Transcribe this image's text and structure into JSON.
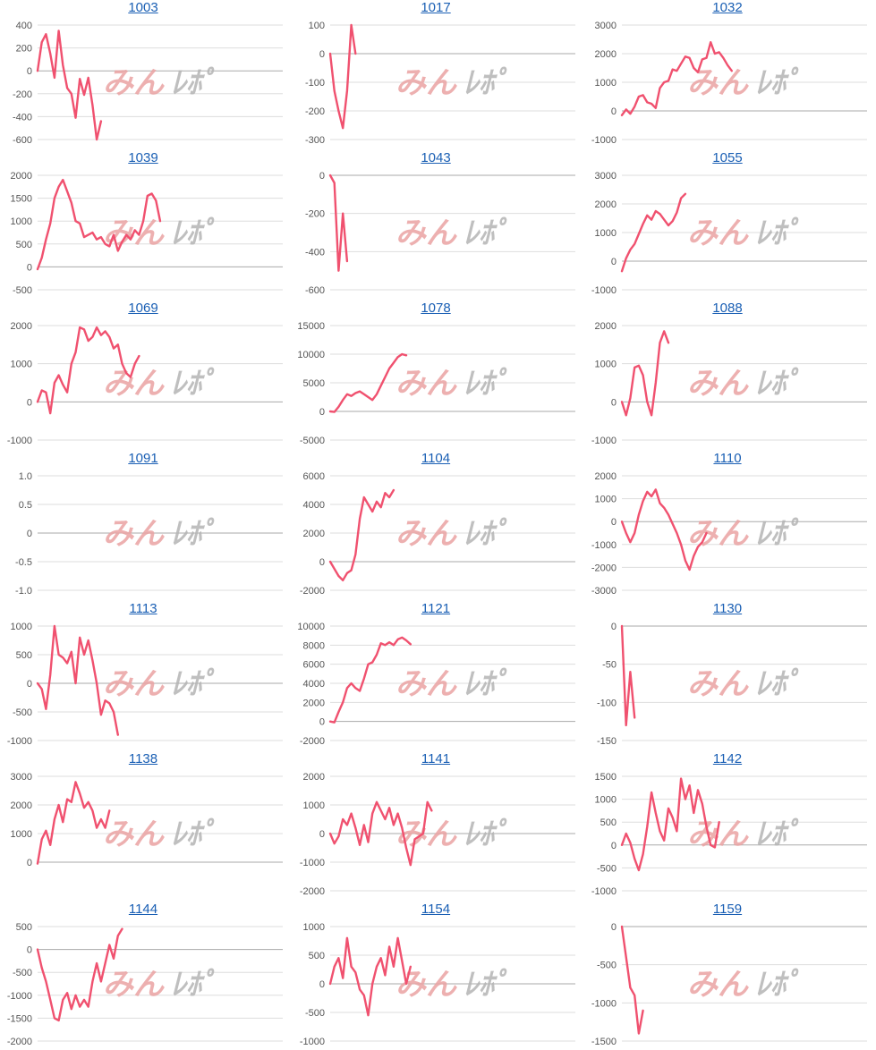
{
  "colors": {
    "line": "#f0516f",
    "grid": "#dddddd",
    "zero": "#aaaaaa",
    "tick": "#555555",
    "link": "#1a5fb4",
    "wm_left": "#eaa3a3",
    "wm_right": "#b5b5b5"
  },
  "watermark": {
    "left": "みん",
    "right": "ﾚﾎﾟ"
  },
  "chart_data": [
    {
      "type": "line",
      "title": "1003",
      "yticks": [
        "400",
        "200",
        "0",
        "-200",
        "-400",
        "-600"
      ],
      "ylim": [
        -600,
        400
      ],
      "y": [
        0,
        250,
        320,
        150,
        -60,
        350,
        50,
        -150,
        -200,
        -410,
        -70,
        -210,
        -60,
        -300,
        -600,
        -440
      ]
    },
    {
      "type": "line",
      "title": "1017",
      "yticks": [
        "100",
        "0",
        "-100",
        "-200",
        "-300"
      ],
      "ylim": [
        -300,
        100
      ],
      "y": [
        0,
        -130,
        -200,
        -260,
        -130,
        100,
        0
      ]
    },
    {
      "type": "line",
      "title": "1032",
      "yticks": [
        "3000",
        "2000",
        "1000",
        "0",
        "-1000"
      ],
      "ylim": [
        -1000,
        3000
      ],
      "y": [
        -150,
        50,
        -100,
        150,
        500,
        550,
        300,
        250,
        100,
        800,
        1000,
        1050,
        1450,
        1400,
        1650,
        1900,
        1850,
        1500,
        1350,
        1800,
        1850,
        2400,
        2000,
        2050,
        1850,
        1600,
        1400
      ]
    },
    {
      "type": "line",
      "title": "1039",
      "yticks": [
        "2000",
        "1500",
        "1000",
        "500",
        "0",
        "-500"
      ],
      "ylim": [
        -500,
        2000
      ],
      "y": [
        -50,
        200,
        600,
        950,
        1500,
        1750,
        1900,
        1650,
        1400,
        1000,
        950,
        650,
        700,
        750,
        600,
        650,
        500,
        450,
        700,
        350,
        550,
        700,
        600,
        800,
        700,
        1000,
        1550,
        1600,
        1450,
        1000
      ]
    },
    {
      "type": "line",
      "title": "1043",
      "yticks": [
        "0",
        "-200",
        "-400",
        "-600"
      ],
      "ylim": [
        -600,
        0
      ],
      "y": [
        0,
        -40,
        -500,
        -200,
        -450
      ]
    },
    {
      "type": "line",
      "title": "1055",
      "yticks": [
        "3000",
        "2000",
        "1000",
        "0",
        "-1000"
      ],
      "ylim": [
        -1000,
        3000
      ],
      "y": [
        -350,
        100,
        400,
        600,
        950,
        1300,
        1600,
        1450,
        1750,
        1650,
        1450,
        1250,
        1400,
        1700,
        2200,
        2350
      ]
    },
    {
      "type": "line",
      "title": "1069",
      "yticks": [
        "2000",
        "1000",
        "0",
        "-1000"
      ],
      "ylim": [
        -1000,
        2000
      ],
      "y": [
        0,
        300,
        250,
        -300,
        500,
        700,
        450,
        250,
        1000,
        1300,
        1950,
        1900,
        1600,
        1700,
        1950,
        1750,
        1850,
        1700,
        1400,
        1500,
        1000,
        750,
        650,
        1000,
        1200
      ]
    },
    {
      "type": "line",
      "title": "1078",
      "yticks": [
        "15000",
        "10000",
        "5000",
        "0",
        "-5000"
      ],
      "ylim": [
        -5000,
        15000
      ],
      "y": [
        0,
        -100,
        800,
        2000,
        3000,
        2700,
        3200,
        3500,
        3000,
        2500,
        2000,
        3000,
        4500,
        6000,
        7500,
        8500,
        9500,
        10000,
        9800
      ]
    },
    {
      "type": "line",
      "title": "1088",
      "yticks": [
        "2000",
        "1000",
        "0",
        "-1000"
      ],
      "ylim": [
        -1000,
        2000
      ],
      "y": [
        0,
        -350,
        100,
        900,
        950,
        700,
        0,
        -350,
        500,
        1550,
        1850,
        1550
      ]
    },
    {
      "type": "line",
      "title": "1091",
      "yticks": [
        "1.0",
        "0.5",
        "0",
        "-0.5",
        "-1.0"
      ],
      "ylim": [
        -1,
        1
      ],
      "y": []
    },
    {
      "type": "line",
      "title": "1104",
      "yticks": [
        "6000",
        "4000",
        "2000",
        "0",
        "-2000"
      ],
      "ylim": [
        -2000,
        6000
      ],
      "y": [
        0,
        -500,
        -1000,
        -1300,
        -800,
        -600,
        500,
        3000,
        4500,
        4000,
        3500,
        4200,
        3800,
        4800,
        4500,
        5000
      ]
    },
    {
      "type": "line",
      "title": "1110",
      "yticks": [
        "2000",
        "1000",
        "0",
        "-1000",
        "-2000",
        "-3000"
      ],
      "ylim": [
        -3000,
        2000
      ],
      "y": [
        0,
        -500,
        -900,
        -500,
        300,
        900,
        1300,
        1100,
        1400,
        800,
        600,
        300,
        -100,
        -500,
        -1000,
        -1700,
        -2100,
        -1500,
        -1100,
        -900,
        -500
      ]
    },
    {
      "type": "line",
      "title": "1113",
      "yticks": [
        "1000",
        "500",
        "0",
        "-500",
        "-1000"
      ],
      "ylim": [
        -1000,
        1000
      ],
      "y": [
        0,
        -100,
        -450,
        150,
        1000,
        500,
        450,
        350,
        550,
        0,
        800,
        500,
        750,
        400,
        0,
        -550,
        -300,
        -350,
        -500,
        -900
      ]
    },
    {
      "type": "line",
      "title": "1121",
      "yticks": [
        "10000",
        "8000",
        "6000",
        "4000",
        "2000",
        "0",
        "-2000"
      ],
      "ylim": [
        -2000,
        10000
      ],
      "y": [
        0,
        -100,
        1000,
        2000,
        3500,
        4000,
        3500,
        3200,
        4500,
        6000,
        6200,
        7000,
        8200,
        8000,
        8300,
        8000,
        8600,
        8800,
        8500,
        8100
      ]
    },
    {
      "type": "line",
      "title": "1130",
      "yticks": [
        "0",
        "-50",
        "-100",
        "-150"
      ],
      "ylim": [
        -150,
        0
      ],
      "y": [
        0,
        -130,
        -60,
        -120
      ]
    },
    {
      "type": "line",
      "title": "1138",
      "yticks": [
        "3000",
        "2000",
        "1000",
        "0"
      ],
      "ylim": [
        -1000,
        3000
      ],
      "y": [
        -50,
        800,
        1100,
        600,
        1500,
        2000,
        1400,
        2200,
        2100,
        2800,
        2400,
        1900,
        2100,
        1800,
        1200,
        1500,
        1200,
        1800
      ]
    },
    {
      "type": "line",
      "title": "1141",
      "yticks": [
        "2000",
        "1000",
        "0",
        "-1000",
        "-2000"
      ],
      "ylim": [
        -2000,
        2000
      ],
      "y": [
        0,
        -350,
        -100,
        500,
        300,
        700,
        200,
        -400,
        300,
        -300,
        700,
        1100,
        800,
        500,
        900,
        300,
        700,
        200,
        -500,
        -1100,
        -200,
        -100,
        0,
        1100,
        800
      ]
    },
    {
      "type": "line",
      "title": "1142",
      "yticks": [
        "1500",
        "1000",
        "500",
        "0",
        "-500",
        "-1000"
      ],
      "ylim": [
        -1000,
        1500
      ],
      "y": [
        0,
        250,
        50,
        -300,
        -550,
        -200,
        400,
        1150,
        700,
        300,
        100,
        800,
        600,
        300,
        1450,
        1000,
        1300,
        700,
        1200,
        900,
        400,
        0,
        -50,
        500
      ]
    },
    {
      "type": "line",
      "title": "1144",
      "yticks": [
        "500",
        "0",
        "-500",
        "-1000",
        "-1500",
        "-2000"
      ],
      "ylim": [
        -2000,
        500
      ],
      "y": [
        0,
        -400,
        -700,
        -1100,
        -1500,
        -1550,
        -1100,
        -950,
        -1300,
        -1000,
        -1250,
        -1100,
        -1250,
        -700,
        -300,
        -700,
        -300,
        100,
        -200,
        300,
        450
      ]
    },
    {
      "type": "line",
      "title": "1154",
      "yticks": [
        "1000",
        "500",
        "0",
        "-500",
        "-1000"
      ],
      "ylim": [
        -1000,
        1000
      ],
      "y": [
        0,
        300,
        450,
        100,
        800,
        300,
        200,
        -100,
        -200,
        -550,
        0,
        300,
        450,
        150,
        650,
        300,
        800,
        400,
        0,
        300
      ]
    },
    {
      "type": "line",
      "title": "1159",
      "yticks": [
        "0",
        "-500",
        "-1000",
        "-1500"
      ],
      "ylim": [
        -1500,
        0
      ],
      "y": [
        0,
        -400,
        -800,
        -900,
        -1400,
        -1100
      ]
    }
  ]
}
